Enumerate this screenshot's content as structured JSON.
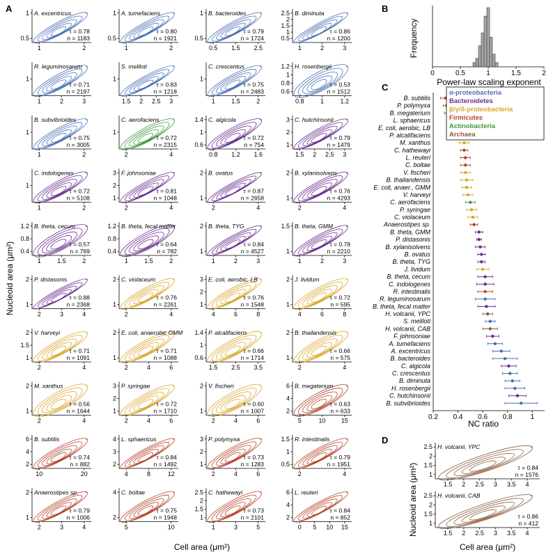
{
  "colors": {
    "alpha": "#4a6fb5",
    "bacteroidetes": "#6a2d8f",
    "beta": "#d9a62a",
    "firmicutes": "#b5452b",
    "actino": "#3e9a3e",
    "archaea": "#8a5a3a",
    "bar": "#a8a8a8"
  },
  "panel_a": {
    "label": "A",
    "ylabel": "Nucleoid area (μm²)",
    "xlabel": "Cell area (μm²)",
    "panels": [
      {
        "name": "A. excentricus",
        "tau": "τ = 0.78",
        "n": "n = 1183",
        "group": "alpha",
        "xticks": [
          "1",
          "2"
        ],
        "yticks": [
          "1",
          "0.5"
        ]
      },
      {
        "name": "A. tumefaciens",
        "tau": "τ = 0.80",
        "n": "n = 1921",
        "group": "alpha",
        "xticks": [
          "1",
          "2"
        ],
        "yticks": [
          "1",
          "0.5"
        ]
      },
      {
        "name": "B. bacteroides",
        "tau": "τ = 0.79",
        "n": "n = 1724",
        "group": "alpha",
        "xticks": [
          "0.5",
          "1.5",
          "2.5"
        ],
        "yticks": [
          "1",
          "0.5"
        ]
      },
      {
        "name": "B. diminuta",
        "tau": "τ = 0.86",
        "n": "n = 1200",
        "group": "alpha",
        "xticks": [
          "1",
          "2",
          "3"
        ],
        "yticks": [
          "2.5",
          "2",
          "1.5",
          "1",
          "0.5"
        ]
      },
      {
        "name": "R. leguminosarum",
        "tau": "τ = 0.71",
        "n": "n = 2197",
        "group": "alpha",
        "xticks": [
          "1",
          "2",
          "3"
        ],
        "yticks": [
          "1"
        ]
      },
      {
        "name": "S. meliloti",
        "tau": "τ = 0.83",
        "n": "n = 1218",
        "group": "alpha",
        "xticks": [
          "1.5",
          "2",
          "2.5",
          "3"
        ],
        "yticks": [
          "1"
        ]
      },
      {
        "name": "C. crescentus",
        "tau": "τ = 0.75",
        "n": "n = 2483",
        "group": "alpha",
        "xticks": [
          "1",
          "1.5",
          "2"
        ],
        "yticks": [
          "1"
        ]
      },
      {
        "name": "H. rosenbergii",
        "tau": "τ = 0.53",
        "n": "n = 1512",
        "group": "alpha",
        "xticks": [
          "0.8",
          "1",
          "1.2"
        ],
        "yticks": [
          "1.2",
          "1",
          "0.8",
          "0.6"
        ]
      },
      {
        "name": "B. subvibrioides",
        "tau": "τ = 0.75",
        "n": "n = 3005",
        "group": "alpha",
        "xticks": [
          "1",
          "2"
        ],
        "yticks": [
          "1"
        ]
      },
      {
        "name": "C. aerofaciens",
        "tau": "τ = 0.72",
        "n": "n = 2315",
        "group": "actino",
        "xticks": [
          "2",
          "4"
        ],
        "yticks": [
          "1"
        ]
      },
      {
        "name": "C. algicola",
        "tau": "τ = 0.72",
        "n": "n = 754",
        "group": "bacteroidetes",
        "xticks": [
          "0.8",
          "1.2",
          "1.6"
        ],
        "yticks": [
          "1.4",
          "1",
          "0.6"
        ]
      },
      {
        "name": "C. hutchinsonii",
        "tau": "τ = 0.79",
        "n": "n = 1479",
        "group": "bacteroidetes",
        "xticks": [
          "1.5",
          "2",
          "2.5",
          "3"
        ],
        "yticks": [
          "3",
          "2",
          "1"
        ]
      },
      {
        "name": "C. indologenes",
        "tau": "τ = 0.72",
        "n": "n = 5108",
        "group": "bacteroidetes",
        "xticks": [
          "1",
          "2"
        ],
        "yticks": [
          "1"
        ]
      },
      {
        "name": "F. johnsoniae",
        "tau": "τ = 0.81",
        "n": "n = 1048",
        "group": "bacteroidetes",
        "xticks": [
          "2",
          "4"
        ],
        "yticks": [
          "3",
          "2",
          "1"
        ]
      },
      {
        "name": "B. ovatus",
        "tau": "τ = 0.87",
        "n": "n = 2658",
        "group": "bacteroidetes",
        "xticks": [
          "2",
          "4"
        ],
        "yticks": [
          "2",
          "1"
        ]
      },
      {
        "name": "B. xylanisolvens",
        "tau": "τ = 0.76",
        "n": "n = 4293",
        "group": "bacteroidetes",
        "xticks": [
          "2",
          "4"
        ],
        "yticks": [
          "2",
          "1"
        ]
      },
      {
        "name": "B. theta, cecum",
        "tau": "τ = 0.57",
        "n": "n = 769",
        "group": "bacteroidetes",
        "xticks": [
          "1",
          "1.5",
          "2"
        ],
        "yticks": [
          "1.2",
          "0.8",
          "0.4"
        ]
      },
      {
        "name": "B. theta, fecal matter",
        "tau": "τ = 0.64",
        "n": "n = 782",
        "group": "bacteroidetes",
        "xticks": [
          "1",
          "1.5",
          "2"
        ],
        "yticks": [
          "1.2",
          "0.8",
          "0.4"
        ]
      },
      {
        "name": "B. theta, TYG",
        "tau": "τ = 0.84",
        "n": "n = 4527",
        "group": "bacteroidetes",
        "xticks": [
          "1",
          "2",
          "3"
        ],
        "yticks": [
          "2",
          "1"
        ]
      },
      {
        "name": "B. theta, GMM",
        "tau": "τ = 0.78",
        "n": "n = 2210",
        "group": "bacteroidetes",
        "xticks": [
          "1",
          "2",
          "3"
        ],
        "yticks": [
          "1.5",
          "1"
        ]
      },
      {
        "name": "P. distasonis",
        "tau": "τ = 0.88",
        "n": "n = 2368",
        "group": "bacteroidetes",
        "xticks": [
          "2",
          "3",
          "4"
        ],
        "yticks": [
          "2",
          "1"
        ]
      },
      {
        "name": "C. violaceum",
        "tau": "τ = 0.76",
        "n": "n = 2261",
        "group": "beta",
        "xticks": [
          "2",
          "4"
        ],
        "yticks": [
          "2",
          "1"
        ]
      },
      {
        "name": "E. coli, aerobic, LB",
        "tau": "τ = 0.76",
        "n": "n = 1548",
        "group": "beta",
        "xticks": [
          "4",
          "6",
          "8"
        ],
        "yticks": [
          "3",
          "2",
          "1"
        ]
      },
      {
        "name": "J. lividum",
        "tau": "τ = 0.72",
        "n": "n = 595",
        "group": "beta",
        "xticks": [
          "4",
          "6",
          "8"
        ],
        "yticks": [
          "2",
          "1"
        ]
      },
      {
        "name": "V. harveyi",
        "tau": "τ = 0.71",
        "n": "n = 1091",
        "group": "beta",
        "xticks": [
          "2",
          "4"
        ],
        "yticks": [
          "2",
          "1.5",
          "1"
        ]
      },
      {
        "name": "E. coli, anaerobic GMM",
        "tau": "τ = 0.71",
        "n": "n = 1088",
        "group": "beta",
        "xticks": [
          "2",
          "4",
          "6"
        ],
        "yticks": [
          "2",
          "1"
        ]
      },
      {
        "name": "P. alcalifaciens",
        "tau": "τ = 0.66",
        "n": "n = 1714",
        "group": "beta",
        "xticks": [
          "1.5",
          "2.5",
          "3.5"
        ],
        "yticks": [
          "1.4",
          "1",
          "0.6"
        ]
      },
      {
        "name": "B. thailandensis",
        "tau": "τ = 0.66",
        "n": "n = 575",
        "group": "beta",
        "xticks": [
          "2",
          "4"
        ],
        "yticks": [
          "2",
          "1"
        ]
      },
      {
        "name": "M. xanthus",
        "tau": "τ = 0.56",
        "n": "n = 1644",
        "group": "beta",
        "xticks": [
          "2",
          "4"
        ],
        "yticks": [
          "2",
          "1"
        ]
      },
      {
        "name": "P. syringae",
        "tau": "τ = 0.72",
        "n": "n = 1710",
        "group": "beta",
        "xticks": [
          "2",
          "4",
          "6"
        ],
        "yticks": [
          "3",
          "2",
          "1"
        ]
      },
      {
        "name": "V. fischeri",
        "tau": "τ = 0.60",
        "n": "n = 1007",
        "group": "beta",
        "xticks": [
          "2",
          "4",
          "6"
        ],
        "yticks": [
          "2",
          "1"
        ]
      },
      {
        "name": "B. megaterium",
        "tau": "τ = 0.63",
        "n": "n = 633",
        "group": "firmicutes",
        "xticks": [
          "5",
          "10",
          "15"
        ],
        "yticks": [
          "6",
          "4",
          "2"
        ]
      },
      {
        "name": "B. subtilis",
        "tau": "τ = 0.74",
        "n": "n = 882",
        "group": "firmicutes",
        "xticks": [
          "10",
          "20"
        ],
        "yticks": [
          "6",
          "4",
          "2"
        ]
      },
      {
        "name": "L. sphaericus",
        "tau": "τ = 0.84",
        "n": "n = 1492",
        "group": "firmicutes",
        "xticks": [
          "4",
          "8",
          "12"
        ],
        "yticks": [
          "4",
          "3",
          "2"
        ]
      },
      {
        "name": "P. polymyxa",
        "tau": "τ = 0.73",
        "n": "n = 1283",
        "group": "firmicutes",
        "xticks": [
          "2",
          "4",
          "6"
        ],
        "yticks": [
          "3",
          "2",
          "1"
        ]
      },
      {
        "name": "R. intestinalis",
        "tau": "τ = 0.79",
        "n": "n = 1951",
        "group": "firmicutes",
        "xticks": [
          "2",
          "4"
        ],
        "yticks": [
          "1.5",
          "1",
          "0.5"
        ]
      },
      {
        "name": "Anaerostipes sp.",
        "tau": "τ = 0.79",
        "n": "n = 1006",
        "group": "firmicutes",
        "xticks": [
          "2",
          "3",
          "4"
        ],
        "yticks": [
          "2",
          "1"
        ]
      },
      {
        "name": "C. boltae",
        "tau": "τ = 0.75",
        "n": "n = 1948",
        "group": "firmicutes",
        "xticks": [
          "5",
          "10"
        ],
        "yticks": [
          "4",
          "2"
        ]
      },
      {
        "name": "C. hathewayi",
        "tau": "τ = 0.73",
        "n": "n = 2101",
        "group": "firmicutes",
        "xticks": [
          "1",
          "3",
          "5"
        ],
        "yticks": [
          "2.5",
          "2",
          "1.5",
          "1"
        ]
      },
      {
        "name": "L. reuteri",
        "tau": "τ = 0.84",
        "n": "n = 852",
        "group": "firmicutes",
        "xticks": [
          "0",
          "5",
          "10",
          "15"
        ],
        "yticks": [
          "6",
          "4",
          "2"
        ]
      }
    ]
  },
  "panel_b": {
    "label": "B",
    "ylabel": "Frequency",
    "xlabel": "Power-law scaling exponent",
    "xticks": [
      "0",
      "0.5",
      "1",
      "1.5",
      "2"
    ]
  },
  "panel_c": {
    "label": "C",
    "xlabel": "NC ratio",
    "xticks": [
      "0.2",
      "0.4",
      "0.6",
      "0.8",
      "1"
    ],
    "legend": [
      {
        "label": "α-proteobacteria",
        "group": "alpha"
      },
      {
        "label": "Bacteroidetes",
        "group": "bacteroidetes"
      },
      {
        "label": "β/γ/δ-proteobacteria",
        "group": "beta"
      },
      {
        "label": "Firmicutes",
        "group": "firmicutes"
      },
      {
        "label": "Actinobacteria",
        "group": "actino"
      },
      {
        "label": "Archaea",
        "group": "archaea"
      }
    ]
  },
  "panel_d": {
    "label": "D",
    "ylabel": "Nucleoid area (μm²)",
    "xlabel": "Cell area (μm²)",
    "panels": [
      {
        "name": "H. volcanii, YPC",
        "tau": "τ = 0.84",
        "n": "n = 1576",
        "group": "archaea",
        "xticks": [
          "1.5",
          "2",
          "2.5",
          "3",
          "3.5",
          "4"
        ],
        "yticks": [
          "2.5",
          "2",
          "1.5",
          "1"
        ]
      },
      {
        "name": "H. volcanii, CAB",
        "tau": "τ = 0.86",
        "n": "n = 412",
        "group": "archaea",
        "xticks": [
          "1.5",
          "2",
          "2.5",
          "3",
          "3.5",
          "4"
        ],
        "yticks": [
          "2.5",
          "2",
          "1.5",
          "1"
        ]
      }
    ]
  },
  "chart_data": [
    {
      "type": "bar",
      "title": "",
      "xlabel": "Power-law scaling exponent",
      "ylabel": "Frequency",
      "xlim": [
        0,
        2
      ],
      "bin_centers": [
        0.75,
        0.8,
        0.85,
        0.9,
        0.95,
        1.0,
        1.05,
        1.1,
        1.15
      ],
      "values": [
        1,
        2,
        5,
        8,
        12,
        14,
        7,
        3,
        1
      ]
    },
    {
      "type": "scatter",
      "title": "",
      "xlabel": "NC ratio",
      "xlim": [
        0.2,
        1.1
      ],
      "categories": [
        "B. subtilis",
        "P. polymyxa",
        "B. megaterium",
        "L. sphaericus",
        "E. coli, aerobic, LB",
        "P. alcalifaciens",
        "M. xanthus",
        "C. hathewayi",
        "L. reuteri",
        "C. boltae",
        "V. fischeri",
        "B. thailandensis",
        "E. coli, anaer., GMM",
        "V. harveyi",
        "C. aerofaciens",
        "P. syringae",
        "C. violaceum",
        "Anaerostipes sp.",
        "B. theta, GMM",
        "P. distasonis",
        "B. xylanisolvens",
        "B. ovatus",
        "B. theta, TYG",
        "J. lividum",
        "B. theta, cecum",
        "C. indologenes",
        "R. intestinalis",
        "R. leguminosarum",
        "B. theta, fecal matter",
        "H. volcanii, YPC",
        "S. meliloti",
        "H. volcanii, CAB",
        "F. johnsoniae",
        "A. tumefaciens",
        "A. excentricus",
        "B. bacteroides",
        "C. algicola",
        "C. crescentus",
        "B. diminuta",
        "H. rosenbergii",
        "C. hutchinsonii",
        "B. subvibrioides"
      ],
      "groups": [
        "firmicutes",
        "firmicutes",
        "firmicutes",
        "firmicutes",
        "beta",
        "beta",
        "beta",
        "firmicutes",
        "firmicutes",
        "firmicutes",
        "beta",
        "beta",
        "beta",
        "beta",
        "actino",
        "beta",
        "beta",
        "firmicutes",
        "bacteroidetes",
        "bacteroidetes",
        "bacteroidetes",
        "bacteroidetes",
        "bacteroidetes",
        "beta",
        "bacteroidetes",
        "bacteroidetes",
        "firmicutes",
        "alpha",
        "bacteroidetes",
        "archaea",
        "alpha",
        "archaea",
        "bacteroidetes",
        "alpha",
        "alpha",
        "alpha",
        "bacteroidetes",
        "alpha",
        "alpha",
        "alpha",
        "bacteroidetes",
        "alpha"
      ],
      "values": [
        0.3,
        0.31,
        0.33,
        0.4,
        0.42,
        0.42,
        0.45,
        0.45,
        0.46,
        0.46,
        0.46,
        0.47,
        0.47,
        0.48,
        0.5,
        0.51,
        0.52,
        0.53,
        0.57,
        0.57,
        0.58,
        0.59,
        0.59,
        0.6,
        0.62,
        0.62,
        0.62,
        0.62,
        0.63,
        0.64,
        0.66,
        0.66,
        0.68,
        0.7,
        0.75,
        0.78,
        0.81,
        0.82,
        0.84,
        0.86,
        0.88,
        0.91
      ],
      "err_low": [
        0.04,
        0.03,
        0.04,
        0.03,
        0.03,
        0.03,
        0.04,
        0.03,
        0.04,
        0.04,
        0.04,
        0.05,
        0.04,
        0.04,
        0.04,
        0.04,
        0.04,
        0.03,
        0.03,
        0.02,
        0.04,
        0.03,
        0.03,
        0.05,
        0.06,
        0.07,
        0.06,
        0.08,
        0.07,
        0.04,
        0.04,
        0.06,
        0.05,
        0.06,
        0.07,
        0.1,
        0.06,
        0.06,
        0.06,
        0.08,
        0.07,
        0.13
      ],
      "err_high": [
        0.04,
        0.03,
        0.04,
        0.03,
        0.03,
        0.03,
        0.04,
        0.03,
        0.04,
        0.04,
        0.04,
        0.05,
        0.04,
        0.04,
        0.04,
        0.04,
        0.04,
        0.03,
        0.03,
        0.02,
        0.04,
        0.03,
        0.03,
        0.05,
        0.06,
        0.07,
        0.06,
        0.08,
        0.07,
        0.04,
        0.04,
        0.06,
        0.05,
        0.06,
        0.07,
        0.1,
        0.06,
        0.06,
        0.06,
        0.08,
        0.07,
        0.13
      ]
    }
  ]
}
